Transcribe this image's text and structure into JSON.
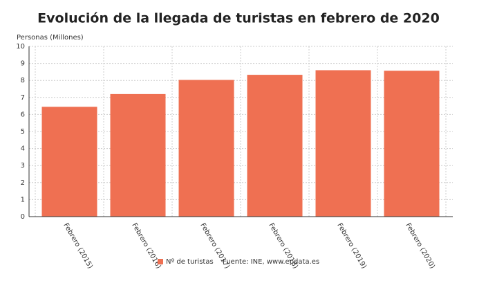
{
  "chart_data": {
    "type": "bar",
    "title": "Evolución de la llegada de turistas en febrero de 2020",
    "y_label": "Personas (Millones)",
    "categories": [
      "Febrero (2015)",
      "Febrero (2016)",
      "Febrero (2017)",
      "Febrero (2018)",
      "Febrero (2019)",
      "Febrero (2020)"
    ],
    "series": [
      {
        "name": "Nº de turistas",
        "color": "#ef7052",
        "values": [
          6.45,
          7.2,
          8.03,
          8.33,
          8.6,
          8.57
        ]
      }
    ],
    "source": "Fuente: INE, www.epdata.es",
    "ylim": [
      0,
      10
    ],
    "yticks": [
      0,
      1,
      2,
      3,
      4,
      5,
      6,
      7,
      8,
      9,
      10
    ],
    "grid": true
  }
}
